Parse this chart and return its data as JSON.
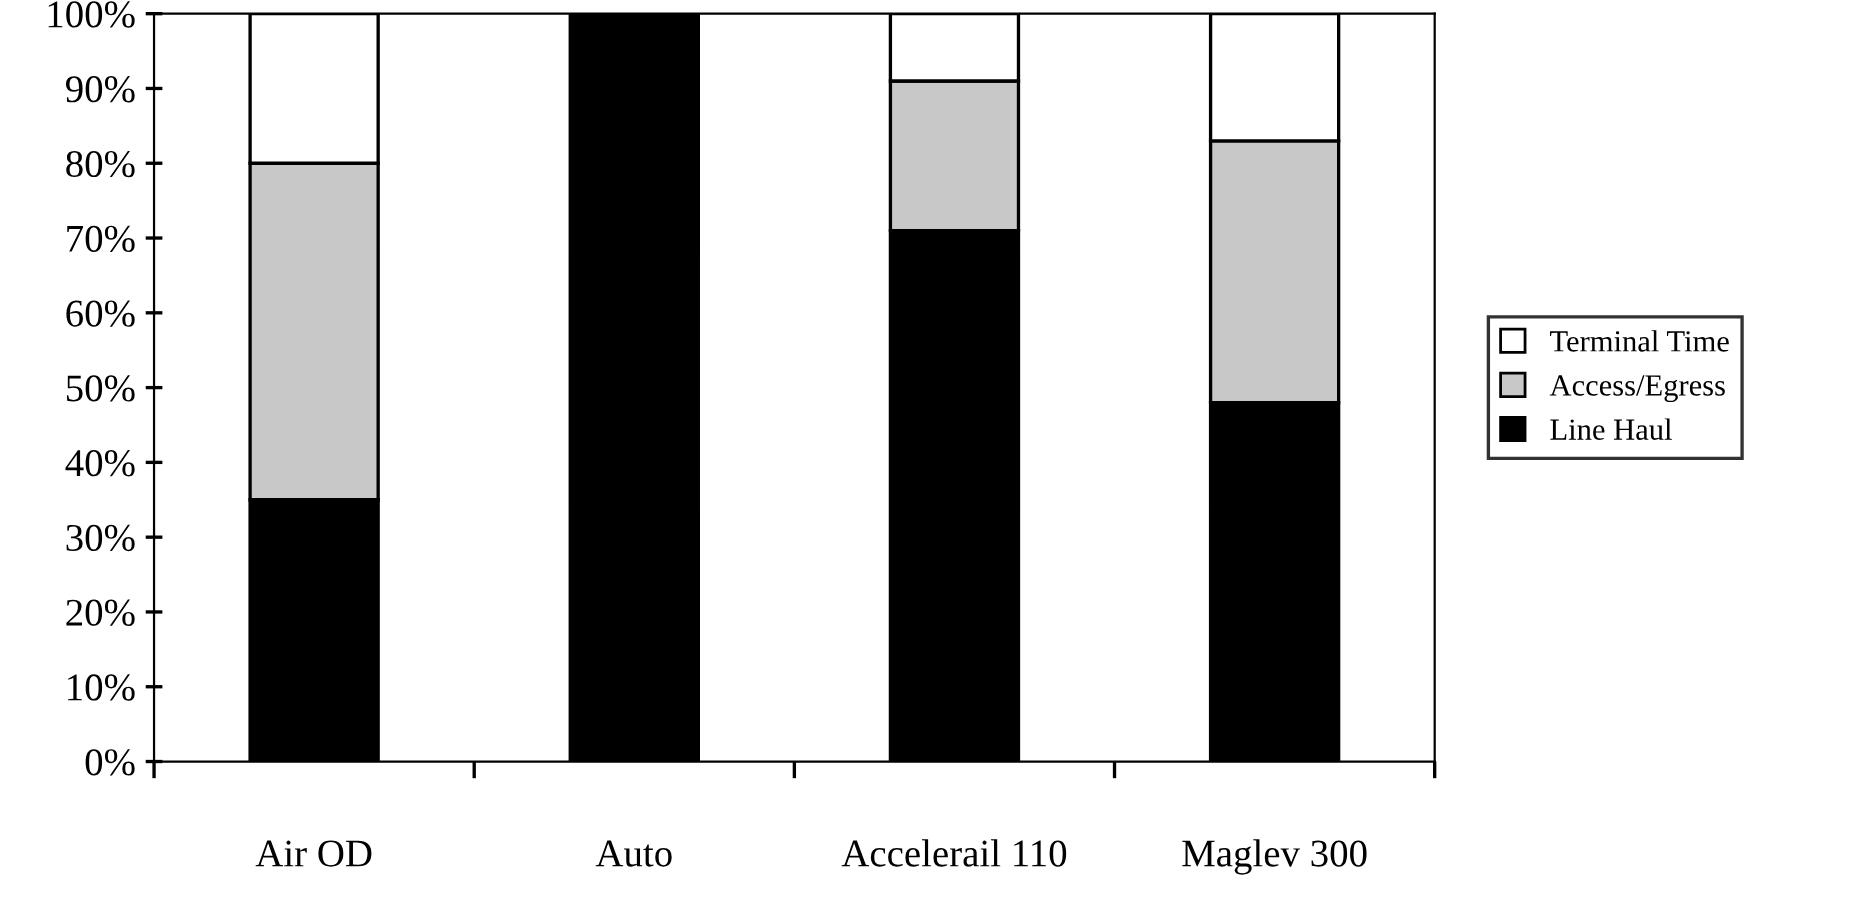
{
  "chart_data": {
    "type": "bar",
    "stacked": true,
    "categories": [
      "Air OD",
      "Auto",
      "Accelerail 110",
      "Maglev 300"
    ],
    "series": [
      {
        "name": "Line Haul",
        "color": "#000000",
        "values": [
          35,
          100,
          71,
          48
        ]
      },
      {
        "name": "Access/Egress",
        "color": "#c8c8c8",
        "values": [
          45,
          0,
          20,
          35
        ]
      },
      {
        "name": "Terminal Time",
        "color": "#ffffff",
        "values": [
          20,
          0,
          9,
          17
        ]
      }
    ],
    "ylim": [
      0,
      100
    ],
    "yticks": [
      {
        "value": 0,
        "label": "0%"
      },
      {
        "value": 10,
        "label": "10%"
      },
      {
        "value": 20,
        "label": "20%"
      },
      {
        "value": 30,
        "label": "30%"
      },
      {
        "value": 40,
        "label": "40%"
      },
      {
        "value": 50,
        "label": "50%"
      },
      {
        "value": 60,
        "label": "60%"
      },
      {
        "value": 70,
        "label": "70%"
      },
      {
        "value": 80,
        "label": "80%"
      },
      {
        "value": 90,
        "label": "90%"
      },
      {
        "value": 100,
        "label": "100%"
      }
    ],
    "grid": false,
    "legend": "right"
  }
}
